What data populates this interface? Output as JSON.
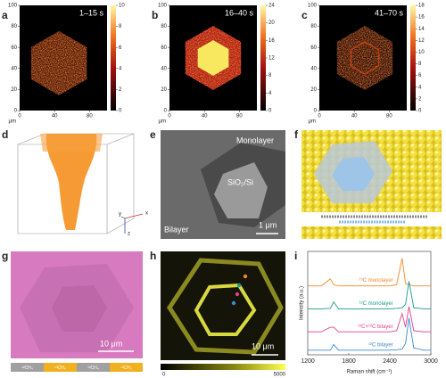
{
  "panel_labels": [
    "a",
    "b",
    "c",
    "d",
    "e",
    "f",
    "g",
    "h",
    "i"
  ],
  "heatmaps": [
    {
      "time": "1–15 s",
      "unit": "μm",
      "xlim": [
        0,
        100
      ],
      "ylim": [
        0,
        100
      ],
      "xticks": [
        0,
        40,
        80
      ],
      "yticks": [
        0,
        20,
        40,
        60,
        80,
        100
      ],
      "colorbar_lim": [
        0,
        10
      ],
      "colorbar_ticks": [
        0,
        2,
        4,
        6,
        8,
        10
      ]
    },
    {
      "time": "16–40 s",
      "unit": "μm",
      "xlim": [
        0,
        100
      ],
      "ylim": [
        0,
        100
      ],
      "xticks": [
        0,
        40,
        80
      ],
      "yticks": [
        0,
        20,
        40,
        60,
        80,
        100
      ],
      "colorbar_lim": [
        0,
        24
      ],
      "colorbar_ticks": [
        0,
        4,
        8,
        12,
        16,
        20,
        24
      ]
    },
    {
      "time": "41–70 s",
      "unit": "μm",
      "xlim": [
        0,
        100
      ],
      "ylim": [
        0,
        100
      ],
      "xticks": [
        0,
        40,
        80
      ],
      "yticks": [
        0,
        20,
        40,
        60,
        80,
        100
      ],
      "colorbar_lim": [
        0,
        18
      ],
      "colorbar_ticks": [
        0,
        2,
        4,
        6,
        8,
        10,
        12,
        14,
        16,
        18
      ]
    }
  ],
  "d": {
    "axes": [
      "x",
      "y",
      "z"
    ]
  },
  "e": {
    "monolayer": "Monolayer",
    "substrate": "SiO₂/Si",
    "bilayer": "Bilayer",
    "scale": "1 μm"
  },
  "g": {
    "scale": "10 μm",
    "sequence": [
      "¹²CH₄",
      "¹³CH₄",
      "¹²CH₄",
      "¹³CH₄"
    ]
  },
  "h": {
    "scale": "10 μm",
    "colorbar_min": "0",
    "colorbar_max": "5000"
  },
  "chart_data": {
    "type": "line",
    "x_label": "Raman shift (cm⁻¹)",
    "y_label": "Intensity (a.u.)",
    "xlim": [
      1200,
      3000
    ],
    "xticks": [
      1200,
      1800,
      2400,
      3000
    ],
    "ylim": [
      0,
      4.5
    ],
    "x": [
      1200,
      1400,
      1530,
      1580,
      1650,
      2400,
      2500,
      2580,
      2630,
      2680,
      2750,
      2900,
      3000
    ],
    "series": [
      {
        "name": "¹³C monolayer",
        "color": "#f08a24",
        "values": [
          3,
          3,
          3.3,
          3.05,
          3,
          3,
          3.05,
          4.2,
          3.1,
          3.05,
          3,
          3,
          3
        ]
      },
      {
        "name": "¹²C monolayer",
        "color": "#1a9a8a",
        "values": [
          2,
          2,
          2.02,
          2.3,
          2,
          2,
          2.02,
          2.05,
          2.2,
          3.2,
          2.05,
          2,
          2
        ]
      },
      {
        "name": "¹³C+¹²C bilayer",
        "color": "#e0408a",
        "values": [
          1,
          1,
          1.2,
          1.2,
          1,
          1,
          1.05,
          1.8,
          1.2,
          2.1,
          1.05,
          1,
          1
        ]
      },
      {
        "name": "¹²C bilayer",
        "color": "#3a8ad0",
        "values": [
          0.2,
          0.2,
          0.2,
          0.45,
          0.2,
          0.2,
          0.22,
          0.25,
          0.5,
          1.6,
          0.3,
          0.2,
          0.2
        ]
      }
    ]
  }
}
